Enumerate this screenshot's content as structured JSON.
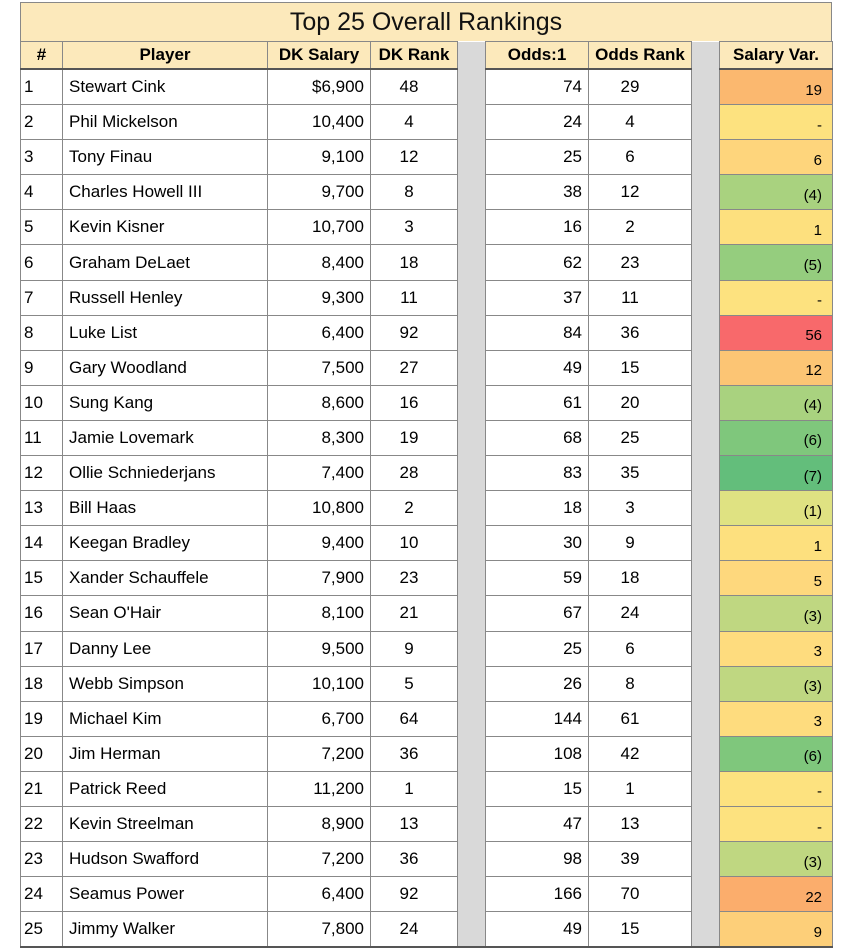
{
  "title": "Top 25 Overall Rankings",
  "columns": [
    "#",
    "Player",
    "DK Salary",
    "DK Rank",
    "Odds:1",
    "Odds Rank",
    "Salary Var."
  ],
  "rows": [
    {
      "n": "1",
      "player": "Stewart Cink",
      "salary": "$6,900",
      "dk_rank": "48",
      "odds": "74",
      "odds_rank": "29",
      "var": "19",
      "var_color": "#fbb86f"
    },
    {
      "n": "2",
      "player": "Phil Mickelson",
      "salary": "10,400",
      "dk_rank": "4",
      "odds": "24",
      "odds_rank": "4",
      "var": "-",
      "var_color": "#fde27f"
    },
    {
      "n": "3",
      "player": "Tony Finau",
      "salary": "9,100",
      "dk_rank": "12",
      "odds": "25",
      "odds_rank": "6",
      "var": "6",
      "var_color": "#fed57c"
    },
    {
      "n": "4",
      "player": "Charles Howell III",
      "salary": "9,700",
      "dk_rank": "8",
      "odds": "38",
      "odds_rank": "12",
      "var": "(4)",
      "var_color": "#a9d27f"
    },
    {
      "n": "5",
      "player": "Kevin Kisner",
      "salary": "10,700",
      "dk_rank": "3",
      "odds": "16",
      "odds_rank": "2",
      "var": "1",
      "var_color": "#fde07e"
    },
    {
      "n": "6",
      "player": "Graham DeLaet",
      "salary": "8,400",
      "dk_rank": "18",
      "odds": "62",
      "odds_rank": "23",
      "var": "(5)",
      "var_color": "#95cd7e"
    },
    {
      "n": "7",
      "player": "Russell Henley",
      "salary": "9,300",
      "dk_rank": "11",
      "odds": "37",
      "odds_rank": "11",
      "var": "-",
      "var_color": "#fde27f"
    },
    {
      "n": "8",
      "player": "Luke List",
      "salary": "6,400",
      "dk_rank": "92",
      "odds": "84",
      "odds_rank": "36",
      "var": "56",
      "var_color": "#f8696b"
    },
    {
      "n": "9",
      "player": "Gary Woodland",
      "salary": "7,500",
      "dk_rank": "27",
      "odds": "49",
      "odds_rank": "15",
      "var": "12",
      "var_color": "#fcc574"
    },
    {
      "n": "10",
      "player": "Sung Kang",
      "salary": "8,600",
      "dk_rank": "16",
      "odds": "61",
      "odds_rank": "20",
      "var": "(4)",
      "var_color": "#a9d27f"
    },
    {
      "n": "11",
      "player": "Jamie Lovemark",
      "salary": "8,300",
      "dk_rank": "19",
      "odds": "68",
      "odds_rank": "25",
      "var": "(6)",
      "var_color": "#7fc77c"
    },
    {
      "n": "12",
      "player": "Ollie Schniederjans",
      "salary": "7,400",
      "dk_rank": "28",
      "odds": "83",
      "odds_rank": "35",
      "var": "(7)",
      "var_color": "#63be7b"
    },
    {
      "n": "13",
      "player": "Bill Haas",
      "salary": "10,800",
      "dk_rank": "2",
      "odds": "18",
      "odds_rank": "3",
      "var": "(1)",
      "var_color": "#dfe282"
    },
    {
      "n": "14",
      "player": "Keegan Bradley",
      "salary": "9,400",
      "dk_rank": "10",
      "odds": "30",
      "odds_rank": "9",
      "var": "1",
      "var_color": "#fde07e"
    },
    {
      "n": "15",
      "player": "Xander Schauffele",
      "salary": "7,900",
      "dk_rank": "23",
      "odds": "59",
      "odds_rank": "18",
      "var": "5",
      "var_color": "#fed87d"
    },
    {
      "n": "16",
      "player": "Sean O'Hair",
      "salary": "8,100",
      "dk_rank": "21",
      "odds": "67",
      "odds_rank": "24",
      "var": "(3)",
      "var_color": "#bfd781"
    },
    {
      "n": "17",
      "player": "Danny Lee",
      "salary": "9,500",
      "dk_rank": "9",
      "odds": "25",
      "odds_rank": "6",
      "var": "3",
      "var_color": "#fedc7e"
    },
    {
      "n": "18",
      "player": "Webb Simpson",
      "salary": "10,100",
      "dk_rank": "5",
      "odds": "26",
      "odds_rank": "8",
      "var": "(3)",
      "var_color": "#bfd781"
    },
    {
      "n": "19",
      "player": "Michael Kim",
      "salary": "6,700",
      "dk_rank": "64",
      "odds": "144",
      "odds_rank": "61",
      "var": "3",
      "var_color": "#fedc7e"
    },
    {
      "n": "20",
      "player": "Jim Herman",
      "salary": "7,200",
      "dk_rank": "36",
      "odds": "108",
      "odds_rank": "42",
      "var": "(6)",
      "var_color": "#7fc77c"
    },
    {
      "n": "21",
      "player": "Patrick Reed",
      "salary": "11,200",
      "dk_rank": "1",
      "odds": "15",
      "odds_rank": "1",
      "var": "-",
      "var_color": "#fde27f"
    },
    {
      "n": "22",
      "player": "Kevin Streelman",
      "salary": "8,900",
      "dk_rank": "13",
      "odds": "47",
      "odds_rank": "13",
      "var": "-",
      "var_color": "#fde27f"
    },
    {
      "n": "23",
      "player": "Hudson Swafford",
      "salary": "7,200",
      "dk_rank": "36",
      "odds": "98",
      "odds_rank": "39",
      "var": "(3)",
      "var_color": "#bfd781"
    },
    {
      "n": "24",
      "player": "Seamus Power",
      "salary": "6,400",
      "dk_rank": "92",
      "odds": "166",
      "odds_rank": "70",
      "var": "22",
      "var_color": "#fbad6c"
    },
    {
      "n": "25",
      "player": "Jimmy Walker",
      "salary": "7,800",
      "dk_rank": "24",
      "odds": "49",
      "odds_rank": "15",
      "var": "9",
      "var_color": "#fdcf79"
    }
  ]
}
